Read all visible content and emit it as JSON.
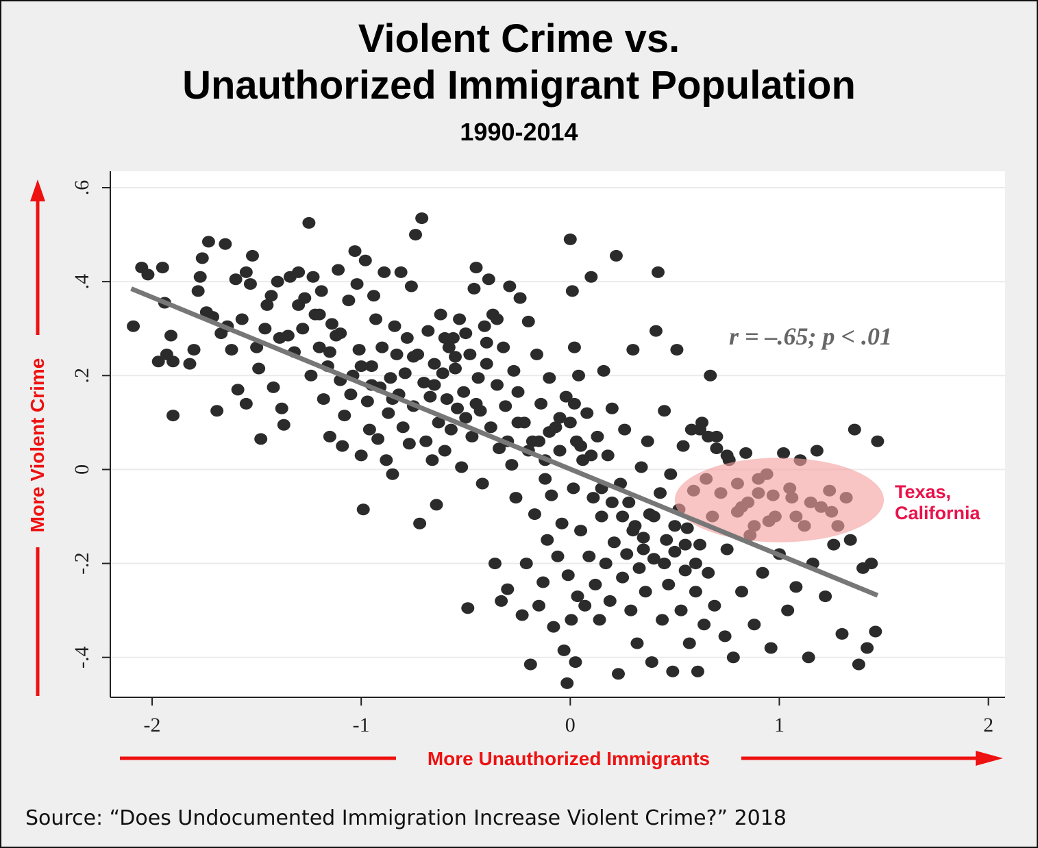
{
  "title": {
    "line1": "Violent Crime vs.",
    "line2": "Unauthorized Immigrant Population",
    "subtitle": "1990-2014"
  },
  "source": "Source: “Does Undocumented Immigration Increase Violent Crime?” 2018",
  "colors": {
    "background": "#efefef",
    "plot_area": "#ffffff",
    "points": "#2b2b2b",
    "fit_line": "#777777",
    "arrows": "#ee1111",
    "highlight_fill": "#f4a0a0",
    "highlight_label": "#e8124a"
  },
  "chart_data": {
    "type": "scatter",
    "xlabel": "More Unauthorized Immigrants",
    "ylabel": "More Violent Crime",
    "xlim": [
      -2.2,
      2.08
    ],
    "ylim": [
      -0.485,
      0.635
    ],
    "xticks": [
      -2,
      -1,
      0,
      1,
      2
    ],
    "xtick_labels": [
      "-2",
      "-1",
      "0",
      "1",
      "2"
    ],
    "yticks": [
      -0.4,
      -0.2,
      0,
      0.2,
      0.4,
      0.6
    ],
    "ytick_labels": [
      "-.4",
      "-.2",
      "0",
      ".2",
      ".4",
      ".6"
    ],
    "grid": "horizontal",
    "fit_line": {
      "x": [
        -2.1,
        1.47
      ],
      "y": [
        0.385,
        -0.268
      ]
    },
    "annotation": "r = –.65; p < .01",
    "highlight": {
      "label": "Texas,\nCalifornia",
      "center": [
        1.0,
        -0.065
      ],
      "radius_x": 0.5,
      "radius_y": 0.09
    },
    "points": [
      [
        -2.09,
        0.305
      ],
      [
        -2.05,
        0.43
      ],
      [
        -2.02,
        0.415
      ],
      [
        -1.97,
        0.23
      ],
      [
        -1.95,
        0.43
      ],
      [
        -1.94,
        0.355
      ],
      [
        -1.93,
        0.245
      ],
      [
        -1.91,
        0.285
      ],
      [
        -1.9,
        0.23
      ],
      [
        -1.9,
        0.115
      ],
      [
        -1.82,
        0.225
      ],
      [
        -1.8,
        0.255
      ],
      [
        -1.78,
        0.38
      ],
      [
        -1.77,
        0.41
      ],
      [
        -1.76,
        0.45
      ],
      [
        -1.74,
        0.335
      ],
      [
        -1.73,
        0.485
      ],
      [
        -1.71,
        0.325
      ],
      [
        -1.69,
        0.125
      ],
      [
        -1.67,
        0.29
      ],
      [
        -1.65,
        0.48
      ],
      [
        -1.64,
        0.305
      ],
      [
        -1.62,
        0.255
      ],
      [
        -1.6,
        0.405
      ],
      [
        -1.59,
        0.17
      ],
      [
        -1.57,
        0.32
      ],
      [
        -1.55,
        0.14
      ],
      [
        -1.55,
        0.42
      ],
      [
        -1.53,
        0.395
      ],
      [
        -1.52,
        0.455
      ],
      [
        -1.5,
        0.26
      ],
      [
        -1.49,
        0.215
      ],
      [
        -1.48,
        0.065
      ],
      [
        -1.46,
        0.3
      ],
      [
        -1.45,
        0.35
      ],
      [
        -1.43,
        0.37
      ],
      [
        -1.42,
        0.175
      ],
      [
        -1.4,
        0.4
      ],
      [
        -1.39,
        0.28
      ],
      [
        -1.38,
        0.13
      ],
      [
        -1.37,
        0.095
      ],
      [
        -1.35,
        0.285
      ],
      [
        -1.34,
        0.41
      ],
      [
        -1.32,
        0.25
      ],
      [
        -1.3,
        0.42
      ],
      [
        -1.28,
        0.3
      ],
      [
        -1.27,
        0.365
      ],
      [
        -1.25,
        0.525
      ],
      [
        -1.24,
        0.2
      ],
      [
        -1.23,
        0.41
      ],
      [
        -1.22,
        0.33
      ],
      [
        -1.2,
        0.26
      ],
      [
        -1.19,
        0.38
      ],
      [
        -1.18,
        0.15
      ],
      [
        -1.16,
        0.22
      ],
      [
        -1.15,
        0.07
      ],
      [
        -1.14,
        0.31
      ],
      [
        -1.12,
        0.285
      ],
      [
        -1.11,
        0.425
      ],
      [
        -1.1,
        0.19
      ],
      [
        -1.09,
        0.05
      ],
      [
        -1.08,
        0.115
      ],
      [
        -1.06,
        0.36
      ],
      [
        -1.05,
        0.16
      ],
      [
        -1.04,
        0.2
      ],
      [
        -1.03,
        0.465
      ],
      [
        -1.02,
        0.395
      ],
      [
        -1.01,
        0.255
      ],
      [
        -1.0,
        0.03
      ],
      [
        -0.99,
        -0.085
      ],
      [
        -0.98,
        0.445
      ],
      [
        -0.97,
        0.145
      ],
      [
        -0.96,
        0.085
      ],
      [
        -0.95,
        0.22
      ],
      [
        -0.94,
        0.37
      ],
      [
        -0.93,
        0.32
      ],
      [
        -0.92,
        0.065
      ],
      [
        -0.91,
        0.175
      ],
      [
        -0.9,
        0.26
      ],
      [
        -0.89,
        0.42
      ],
      [
        -0.88,
        0.02
      ],
      [
        -0.87,
        0.12
      ],
      [
        -0.86,
        0.195
      ],
      [
        -0.85,
        -0.01
      ],
      [
        -0.84,
        0.305
      ],
      [
        -0.83,
        0.245
      ],
      [
        -0.82,
        0.16
      ],
      [
        -0.81,
        0.42
      ],
      [
        -0.8,
        0.09
      ],
      [
        -0.79,
        0.205
      ],
      [
        -0.78,
        0.28
      ],
      [
        -0.77,
        0.055
      ],
      [
        -0.76,
        0.39
      ],
      [
        -0.75,
        0.135
      ],
      [
        -0.74,
        0.5
      ],
      [
        -0.73,
        0.245
      ],
      [
        -0.72,
        -0.115
      ],
      [
        -0.71,
        0.535
      ],
      [
        -0.7,
        0.185
      ],
      [
        -0.69,
        0.06
      ],
      [
        -0.68,
        0.295
      ],
      [
        -0.67,
        0.155
      ],
      [
        -0.66,
        0.02
      ],
      [
        -0.65,
        0.225
      ],
      [
        -0.64,
        -0.075
      ],
      [
        -0.63,
        0.1
      ],
      [
        -0.62,
        0.33
      ],
      [
        -0.61,
        0.205
      ],
      [
        -0.6,
        0.04
      ],
      [
        -0.59,
        0.15
      ],
      [
        -0.58,
        0.26
      ],
      [
        -0.57,
        0.085
      ],
      [
        -0.56,
        0.28
      ],
      [
        -0.55,
        0.215
      ],
      [
        -0.54,
        0.13
      ],
      [
        -0.53,
        0.32
      ],
      [
        -0.52,
        0.005
      ],
      [
        -0.51,
        0.165
      ],
      [
        -0.5,
        0.29
      ],
      [
        -0.49,
        -0.295
      ],
      [
        -0.48,
        0.245
      ],
      [
        -0.47,
        0.07
      ],
      [
        -0.46,
        0.385
      ],
      [
        -0.45,
        0.43
      ],
      [
        -0.44,
        0.195
      ],
      [
        -0.43,
        0.125
      ],
      [
        -0.42,
        -0.03
      ],
      [
        -0.41,
        0.305
      ],
      [
        -0.4,
        0.225
      ],
      [
        -0.39,
        0.405
      ],
      [
        -0.38,
        0.09
      ],
      [
        -0.37,
        0.33
      ],
      [
        -0.36,
        -0.2
      ],
      [
        -0.35,
        0.18
      ],
      [
        -0.34,
        0.045
      ],
      [
        -0.33,
        -0.28
      ],
      [
        -0.32,
        0.26
      ],
      [
        -0.31,
        0.135
      ],
      [
        -0.3,
        -0.255
      ],
      [
        -0.29,
        0.39
      ],
      [
        -0.28,
        0.01
      ],
      [
        -0.27,
        0.21
      ],
      [
        -0.26,
        -0.06
      ],
      [
        -0.25,
        0.165
      ],
      [
        -0.24,
        0.365
      ],
      [
        -0.23,
        -0.31
      ],
      [
        -0.22,
        0.1
      ],
      [
        -0.21,
        -0.2
      ],
      [
        -0.2,
        0.315
      ],
      [
        -0.19,
        -0.415
      ],
      [
        -0.18,
        0.06
      ],
      [
        -0.17,
        -0.095
      ],
      [
        -0.16,
        0.245
      ],
      [
        -0.15,
        -0.29
      ],
      [
        -0.14,
        0.14
      ],
      [
        -0.13,
        -0.24
      ],
      [
        -0.12,
        0.02
      ],
      [
        -0.11,
        -0.15
      ],
      [
        -0.1,
        0.195
      ],
      [
        -0.09,
        -0.055
      ],
      [
        -0.08,
        -0.335
      ],
      [
        -0.07,
        0.09
      ],
      [
        -0.06,
        -0.185
      ],
      [
        -0.05,
        0.04
      ],
      [
        -0.04,
        -0.115
      ],
      [
        -0.03,
        -0.385
      ],
      [
        -0.02,
        0.155
      ],
      [
        -0.015,
        -0.455
      ],
      [
        -0.01,
        -0.225
      ],
      [
        0.0,
        0.49
      ],
      [
        0.0,
        0.1
      ],
      [
        0.005,
        -0.32
      ],
      [
        0.01,
        0.38
      ],
      [
        0.015,
        -0.04
      ],
      [
        0.02,
        0.26
      ],
      [
        0.025,
        -0.41
      ],
      [
        0.03,
        0.06
      ],
      [
        0.035,
        -0.27
      ],
      [
        0.04,
        0.2
      ],
      [
        0.05,
        -0.13
      ],
      [
        0.06,
        0.02
      ],
      [
        0.07,
        -0.29
      ],
      [
        0.08,
        0.12
      ],
      [
        0.09,
        -0.185
      ],
      [
        0.1,
        0.41
      ],
      [
        0.11,
        -0.06
      ],
      [
        0.12,
        -0.245
      ],
      [
        0.13,
        0.07
      ],
      [
        0.14,
        -0.32
      ],
      [
        0.15,
        -0.1
      ],
      [
        0.16,
        0.21
      ],
      [
        0.17,
        -0.2
      ],
      [
        0.18,
        0.03
      ],
      [
        0.19,
        -0.28
      ],
      [
        0.2,
        0.13
      ],
      [
        0.21,
        -0.155
      ],
      [
        0.22,
        0.455
      ],
      [
        0.23,
        -0.435
      ],
      [
        0.24,
        -0.03
      ],
      [
        0.25,
        -0.23
      ],
      [
        0.26,
        0.085
      ],
      [
        0.27,
        -0.18
      ],
      [
        0.28,
        -0.07
      ],
      [
        0.29,
        -0.3
      ],
      [
        0.3,
        0.255
      ],
      [
        0.31,
        -0.12
      ],
      [
        0.32,
        -0.37
      ],
      [
        0.33,
        -0.21
      ],
      [
        0.34,
        0.005
      ],
      [
        0.35,
        -0.145
      ],
      [
        0.36,
        -0.26
      ],
      [
        0.37,
        0.06
      ],
      [
        0.38,
        -0.095
      ],
      [
        0.39,
        -0.41
      ],
      [
        0.4,
        -0.19
      ],
      [
        0.41,
        0.295
      ],
      [
        0.42,
        0.42
      ],
      [
        0.43,
        -0.05
      ],
      [
        0.44,
        -0.32
      ],
      [
        0.45,
        0.125
      ],
      [
        0.46,
        -0.15
      ],
      [
        0.47,
        -0.245
      ],
      [
        0.48,
        -0.01
      ],
      [
        0.49,
        -0.43
      ],
      [
        0.5,
        -0.175
      ],
      [
        0.51,
        0.255
      ],
      [
        0.52,
        -0.085
      ],
      [
        0.53,
        -0.3
      ],
      [
        0.54,
        0.05
      ],
      [
        0.55,
        -0.215
      ],
      [
        0.56,
        -0.125
      ],
      [
        0.57,
        -0.37
      ],
      [
        0.58,
        0.085
      ],
      [
        0.59,
        -0.045
      ],
      [
        0.6,
        -0.26
      ],
      [
        0.61,
        -0.43
      ],
      [
        0.62,
        -0.16
      ],
      [
        0.63,
        0.1
      ],
      [
        0.64,
        -0.33
      ],
      [
        0.65,
        -0.02
      ],
      [
        0.66,
        -0.22
      ],
      [
        0.67,
        0.2
      ],
      [
        0.68,
        -0.1
      ],
      [
        0.69,
        -0.29
      ],
      [
        0.7,
        0.07
      ],
      [
        0.72,
        -0.05
      ],
      [
        0.74,
        -0.355
      ],
      [
        0.75,
        -0.17
      ],
      [
        0.76,
        0.02
      ],
      [
        0.78,
        -0.4
      ],
      [
        0.8,
        -0.09
      ],
      [
        0.82,
        -0.26
      ],
      [
        0.84,
        0.035
      ],
      [
        0.86,
        -0.14
      ],
      [
        0.88,
        -0.33
      ],
      [
        0.9,
        -0.05
      ],
      [
        0.92,
        -0.22
      ],
      [
        0.94,
        -0.01
      ],
      [
        0.96,
        -0.38
      ],
      [
        0.98,
        -0.1
      ],
      [
        1.0,
        -0.18
      ],
      [
        1.02,
        0.035
      ],
      [
        1.04,
        -0.3
      ],
      [
        1.06,
        -0.06
      ],
      [
        1.08,
        -0.25
      ],
      [
        1.1,
        0.02
      ],
      [
        1.12,
        -0.12
      ],
      [
        1.14,
        -0.4
      ],
      [
        1.16,
        -0.2
      ],
      [
        1.18,
        0.04
      ],
      [
        1.2,
        -0.08
      ],
      [
        1.22,
        -0.27
      ],
      [
        1.24,
        -0.045
      ],
      [
        1.26,
        -0.16
      ],
      [
        1.28,
        -0.12
      ],
      [
        1.3,
        -0.35
      ],
      [
        1.32,
        -0.06
      ],
      [
        1.34,
        -0.15
      ],
      [
        1.36,
        0.085
      ],
      [
        1.38,
        -0.415
      ],
      [
        1.4,
        -0.21
      ],
      [
        1.42,
        -0.38
      ],
      [
        1.44,
        -0.2
      ],
      [
        1.46,
        -0.345
      ],
      [
        1.47,
        0.06
      ],
      [
        0.62,
        0.085
      ],
      [
        0.66,
        0.07
      ],
      [
        0.7,
        0.045
      ],
      [
        0.75,
        0.03
      ],
      [
        0.8,
        -0.03
      ],
      [
        0.85,
        -0.07
      ],
      [
        0.9,
        -0.02
      ],
      [
        0.95,
        -0.11
      ],
      [
        1.05,
        -0.04
      ],
      [
        1.15,
        -0.07
      ],
      [
        1.25,
        -0.09
      ],
      [
        0.82,
        -0.08
      ],
      [
        0.88,
        -0.12
      ],
      [
        0.97,
        -0.055
      ],
      [
        1.08,
        -0.1
      ],
      [
        -0.35,
        0.32
      ],
      [
        -0.4,
        0.27
      ],
      [
        -0.6,
        0.28
      ],
      [
        -0.55,
        0.24
      ],
      [
        -0.65,
        0.18
      ],
      [
        -0.85,
        0.15
      ],
      [
        -0.95,
        0.18
      ],
      [
        -0.75,
        0.24
      ],
      [
        -0.25,
        0.1
      ],
      [
        -0.15,
        0.06
      ],
      [
        -0.1,
        0.08
      ],
      [
        -0.05,
        0.11
      ],
      [
        0.02,
        0.14
      ],
      [
        0.05,
        0.05
      ],
      [
        0.1,
        0.03
      ],
      [
        0.15,
        -0.04
      ],
      [
        0.2,
        -0.07
      ],
      [
        0.25,
        -0.1
      ],
      [
        0.3,
        -0.13
      ],
      [
        0.35,
        -0.17
      ],
      [
        0.4,
        -0.1
      ],
      [
        0.45,
        -0.2
      ],
      [
        0.5,
        -0.12
      ],
      [
        0.55,
        -0.16
      ],
      [
        0.6,
        -0.2
      ],
      [
        -1.0,
        0.22
      ],
      [
        -1.1,
        0.29
      ],
      [
        -1.2,
        0.33
      ],
      [
        -1.3,
        0.35
      ],
      [
        -1.15,
        0.25
      ],
      [
        -0.45,
        0.14
      ],
      [
        -0.5,
        0.11
      ],
      [
        -0.3,
        0.06
      ],
      [
        -0.2,
        0.04
      ],
      [
        -0.12,
        -0.02
      ]
    ]
  }
}
